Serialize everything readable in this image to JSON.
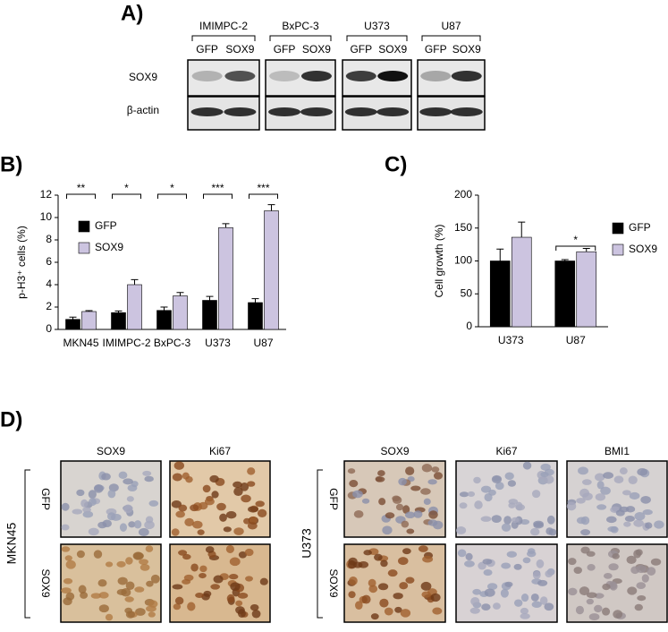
{
  "panel_a": {
    "label": "A)",
    "cell_lines": [
      "IMIMPC-2",
      "BxPC-3",
      "U373",
      "U87"
    ],
    "lanes": [
      "GFP",
      "SOX9"
    ],
    "rows": [
      "SOX9",
      "β-actin"
    ]
  },
  "chart_data": [
    {
      "type": "bar",
      "label": "B)",
      "ylabel": "p-H3⁺ cells (%)",
      "categories": [
        "MKN45",
        "IMIMPC-2",
        "BxPC-3",
        "U373",
        "U87"
      ],
      "series": [
        {
          "name": "GFP",
          "color": "#000000",
          "values": [
            0.9,
            1.5,
            1.7,
            2.6,
            2.4
          ],
          "errors": [
            0.2,
            0.15,
            0.3,
            0.35,
            0.35
          ]
        },
        {
          "name": "SOX9",
          "color": "#ccc4e0",
          "values": [
            1.6,
            4.0,
            3.0,
            9.1,
            10.6
          ],
          "errors": [
            0.08,
            0.45,
            0.3,
            0.35,
            0.55
          ]
        }
      ],
      "significance": [
        "**",
        "*",
        "*",
        "***",
        "***"
      ],
      "ylim": [
        0,
        12
      ],
      "yticks": [
        0,
        2,
        4,
        6,
        8,
        10,
        12
      ],
      "legend": "upper left"
    },
    {
      "type": "bar",
      "label": "C)",
      "ylabel": "Cell growth (%)",
      "categories": [
        "U373",
        "U87"
      ],
      "series": [
        {
          "name": "GFP",
          "color": "#000000",
          "values": [
            100,
            100
          ],
          "errors": [
            18,
            2
          ]
        },
        {
          "name": "SOX9",
          "color": "#ccc4e0",
          "values": [
            136,
            114
          ],
          "errors": [
            23,
            5
          ]
        }
      ],
      "significance": [
        null,
        "*"
      ],
      "ylim": [
        0,
        200
      ],
      "yticks": [
        0,
        50,
        100,
        150,
        200
      ],
      "legend": "right"
    }
  ],
  "panel_d": {
    "label": "D)",
    "left": {
      "sample": "MKN45",
      "columns": [
        "SOX9",
        "Ki67"
      ],
      "rows": [
        "GFP",
        "SOX9"
      ]
    },
    "right": {
      "sample": "U373",
      "columns": [
        "SOX9",
        "Ki67",
        "BMI1"
      ],
      "rows": [
        "GFP",
        "SOX9"
      ]
    }
  }
}
